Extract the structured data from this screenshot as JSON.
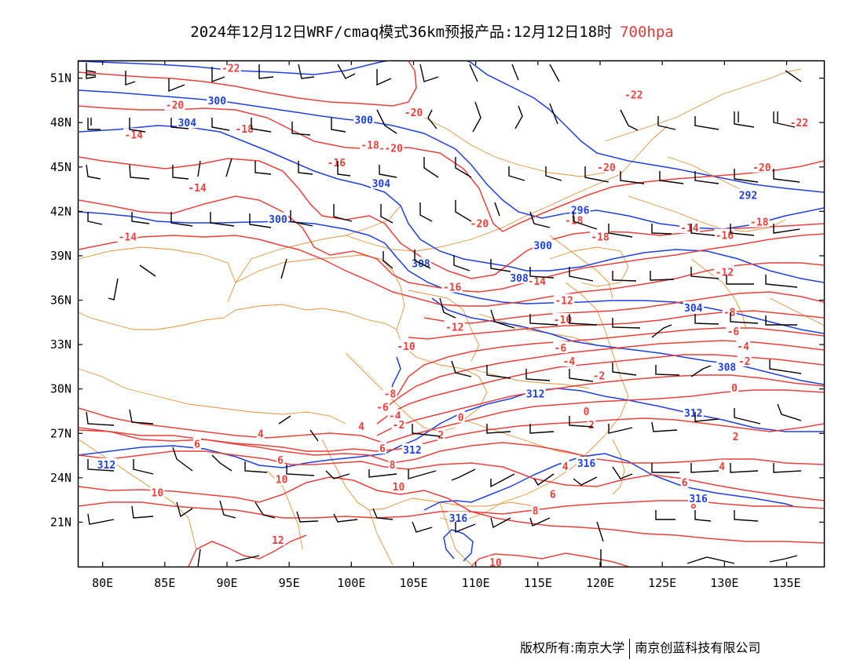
{
  "title": {
    "main": "2024年12月12日WRF/cmaq模式36km预报产品:12月12日18时",
    "level": "700hpa"
  },
  "credit": {
    "left": "版权所有:南京大学",
    "right": "南京创蓝科技有限公司"
  },
  "colors": {
    "temperature": "#e8413c",
    "height": "#1f3fe0",
    "border": "#e0913a",
    "wind": "#000000"
  },
  "map": {
    "lon_range": [
      78,
      138
    ],
    "lat_range": [
      18,
      52.2
    ],
    "lon_ticks": [
      {
        "v": 80,
        "label": "80E"
      },
      {
        "v": 85,
        "label": "85E"
      },
      {
        "v": 90,
        "label": "90E"
      },
      {
        "v": 95,
        "label": "95E"
      },
      {
        "v": 100,
        "label": "100E"
      },
      {
        "v": 105,
        "label": "105E"
      },
      {
        "v": 110,
        "label": "110E"
      },
      {
        "v": 115,
        "label": "115E"
      },
      {
        "v": 120,
        "label": "120E"
      },
      {
        "v": 125,
        "label": "125E"
      },
      {
        "v": 130,
        "label": "130E"
      },
      {
        "v": 135,
        "label": "135E"
      }
    ],
    "lat_ticks": [
      {
        "v": 21,
        "label": "21N"
      },
      {
        "v": 24,
        "label": "24N"
      },
      {
        "v": 27,
        "label": "27N"
      },
      {
        "v": 30,
        "label": "30N"
      },
      {
        "v": 33,
        "label": "33N"
      },
      {
        "v": 36,
        "label": "36N"
      },
      {
        "v": 39,
        "label": "39N"
      },
      {
        "v": 42,
        "label": "42N"
      },
      {
        "v": 45,
        "label": "45N"
      },
      {
        "v": 48,
        "label": "48N"
      },
      {
        "v": 51,
        "label": "51N"
      }
    ],
    "temperature_labels": [
      {
        "text": "-22",
        "lon": 90.3,
        "lat": 51.7
      },
      {
        "text": "-20",
        "lon": 85.8,
        "lat": 49.2
      },
      {
        "text": "-20",
        "lon": 105.0,
        "lat": 48.7
      },
      {
        "text": "-18",
        "lon": 91.4,
        "lat": 47.6
      },
      {
        "text": "-18",
        "lon": 101.5,
        "lat": 46.5
      },
      {
        "text": "-20",
        "lon": 103.4,
        "lat": 46.3
      },
      {
        "text": "-14",
        "lon": 82.5,
        "lat": 47.2
      },
      {
        "text": "-16",
        "lon": 98.8,
        "lat": 45.3
      },
      {
        "text": "-14",
        "lon": 87.6,
        "lat": 43.6
      },
      {
        "text": "-14",
        "lon": 82.0,
        "lat": 40.3
      },
      {
        "text": "-20",
        "lon": 110.3,
        "lat": 41.2
      },
      {
        "text": "-22",
        "lon": 122.7,
        "lat": 49.9
      },
      {
        "text": "-20",
        "lon": 120.5,
        "lat": 45.0
      },
      {
        "text": "-20",
        "lon": 133.0,
        "lat": 45.0
      },
      {
        "text": "-22",
        "lon": 136.0,
        "lat": 48.0
      },
      {
        "text": "-18",
        "lon": 117.9,
        "lat": 41.4
      },
      {
        "text": "-18",
        "lon": 120.0,
        "lat": 40.3
      },
      {
        "text": "-16",
        "lon": 130.0,
        "lat": 40.4
      },
      {
        "text": "-18",
        "lon": 132.8,
        "lat": 41.3
      },
      {
        "text": "-14",
        "lon": 127.2,
        "lat": 40.9
      },
      {
        "text": "-16",
        "lon": 108.1,
        "lat": 36.9
      },
      {
        "text": "-14",
        "lon": 114.9,
        "lat": 37.3
      },
      {
        "text": "-12",
        "lon": 130.0,
        "lat": 37.9
      },
      {
        "text": "-12",
        "lon": 117.1,
        "lat": 36.0
      },
      {
        "text": "-10",
        "lon": 117.0,
        "lat": 34.7
      },
      {
        "text": "-12",
        "lon": 108.3,
        "lat": 34.2
      },
      {
        "text": "-8",
        "lon": 130.4,
        "lat": 35.2
      },
      {
        "text": "-6",
        "lon": 130.7,
        "lat": 33.9
      },
      {
        "text": "-10",
        "lon": 104.4,
        "lat": 32.9
      },
      {
        "text": "-6",
        "lon": 116.8,
        "lat": 32.8
      },
      {
        "text": "-4",
        "lon": 117.5,
        "lat": 31.9
      },
      {
        "text": "-4",
        "lon": 131.5,
        "lat": 32.9
      },
      {
        "text": "-2",
        "lon": 131.6,
        "lat": 31.9
      },
      {
        "text": "-2",
        "lon": 119.9,
        "lat": 30.9
      },
      {
        "text": "0",
        "lon": 130.8,
        "lat": 30.1
      },
      {
        "text": "-8",
        "lon": 103.1,
        "lat": 29.7
      },
      {
        "text": "-6",
        "lon": 102.5,
        "lat": 28.8
      },
      {
        "text": "-4",
        "lon": 103.5,
        "lat": 28.2
      },
      {
        "text": "-2",
        "lon": 103.8,
        "lat": 27.6
      },
      {
        "text": "0",
        "lon": 108.8,
        "lat": 28.1
      },
      {
        "text": "0",
        "lon": 118.9,
        "lat": 28.5
      },
      {
        "text": "2",
        "lon": 119.3,
        "lat": 27.6
      },
      {
        "text": "2",
        "lon": 107.2,
        "lat": 26.9
      },
      {
        "text": "2",
        "lon": 130.9,
        "lat": 26.8
      },
      {
        "text": "4",
        "lon": 100.8,
        "lat": 27.5
      },
      {
        "text": "4",
        "lon": 92.7,
        "lat": 27.0
      },
      {
        "text": "6",
        "lon": 87.6,
        "lat": 26.3
      },
      {
        "text": "6",
        "lon": 102.5,
        "lat": 26.0
      },
      {
        "text": "6",
        "lon": 94.3,
        "lat": 25.2
      },
      {
        "text": "8",
        "lon": 103.3,
        "lat": 24.9
      },
      {
        "text": "4",
        "lon": 117.2,
        "lat": 24.8
      },
      {
        "text": "4",
        "lon": 129.8,
        "lat": 24.8
      },
      {
        "text": "10",
        "lon": 94.4,
        "lat": 23.9
      },
      {
        "text": "10",
        "lon": 84.4,
        "lat": 23.0
      },
      {
        "text": "10",
        "lon": 103.8,
        "lat": 23.4
      },
      {
        "text": "6",
        "lon": 116.2,
        "lat": 22.9
      },
      {
        "text": "6",
        "lon": 126.8,
        "lat": 23.7
      },
      {
        "text": "8",
        "lon": 114.8,
        "lat": 21.8
      },
      {
        "text": "8",
        "lon": 127.5,
        "lat": 22.2
      },
      {
        "text": "12",
        "lon": 94.1,
        "lat": 19.8
      },
      {
        "text": "10",
        "lon": 111.6,
        "lat": 18.3
      }
    ],
    "height_labels": [
      {
        "text": "300",
        "lon": 89.2,
        "lat": 49.5
      },
      {
        "text": "304",
        "lon": 86.8,
        "lat": 48.0
      },
      {
        "text": "300",
        "lon": 101.0,
        "lat": 48.2
      },
      {
        "text": "304",
        "lon": 102.4,
        "lat": 43.9
      },
      {
        "text": "300",
        "lon": 94.1,
        "lat": 41.5
      },
      {
        "text": "308",
        "lon": 105.6,
        "lat": 38.5
      },
      {
        "text": "300",
        "lon": 115.4,
        "lat": 39.7
      },
      {
        "text": "296",
        "lon": 118.4,
        "lat": 42.1
      },
      {
        "text": "292",
        "lon": 131.9,
        "lat": 43.1
      },
      {
        "text": "308",
        "lon": 113.5,
        "lat": 37.5
      },
      {
        "text": "304",
        "lon": 127.5,
        "lat": 35.5
      },
      {
        "text": "308",
        "lon": 130.2,
        "lat": 31.5
      },
      {
        "text": "312",
        "lon": 114.8,
        "lat": 29.7
      },
      {
        "text": "312",
        "lon": 127.5,
        "lat": 28.4
      },
      {
        "text": "312",
        "lon": 80.3,
        "lat": 24.9
      },
      {
        "text": "312",
        "lon": 104.9,
        "lat": 25.9
      },
      {
        "text": "316",
        "lon": 118.9,
        "lat": 25.0
      },
      {
        "text": "316",
        "lon": 127.9,
        "lat": 22.6
      },
      {
        "text": "316",
        "lon": 108.6,
        "lat": 21.3
      }
    ]
  }
}
